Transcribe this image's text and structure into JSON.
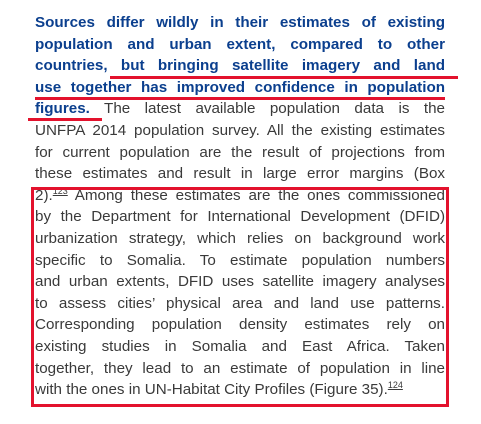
{
  "paragraph": {
    "lines": [
      {
        "bold": "Sources differ wildly in their estimates of existing",
        "text": ""
      },
      {
        "bold": "population and urban extent, compared to other",
        "text": ""
      },
      {
        "bold": "countries, but bringing satellite imagery and land",
        "text": ""
      },
      {
        "bold": "use together has improved confidence in population",
        "text": ""
      },
      {
        "bold": "figures.",
        "text": " The latest available population data is the"
      },
      {
        "bold": "",
        "text": "UNFPA 2014 population survey. All the existing estimates"
      },
      {
        "bold": "",
        "text": "for current population are the result of projections from"
      },
      {
        "bold": "",
        "text": "these estimates and result in large error margins (Box"
      },
      {
        "bold": "",
        "text": "2).",
        "footnote": "123",
        "after": " Among these estimates are the ones commissioned"
      },
      {
        "bold": "",
        "text": "by the Department for International Development (DFID)"
      },
      {
        "bold": "",
        "text": "urbanization strategy, which relies on background work"
      },
      {
        "bold": "",
        "text": "specific to Somalia. To estimate population numbers"
      },
      {
        "bold": "",
        "text": "and urban extents, DFID uses satellite imagery analyses"
      },
      {
        "bold": "",
        "text": "to assess cities’ physical area and land use patterns."
      },
      {
        "bold": "",
        "text": "Corresponding population density estimates rely on"
      },
      {
        "bold": "",
        "text": "existing studies in Somalia and East Africa. Taken"
      },
      {
        "bold": "",
        "text": "together, they lead to an estimate of population in line"
      },
      {
        "bold": "",
        "text": "with the ones in UN-Habitat City Profiles (Figure 35).",
        "footnote": "124",
        "after": ""
      }
    ]
  },
  "colors": {
    "heading_blue": "#0b3f8e",
    "body_gray": "#3a3a3a",
    "annotation_red": "#e3122d"
  }
}
